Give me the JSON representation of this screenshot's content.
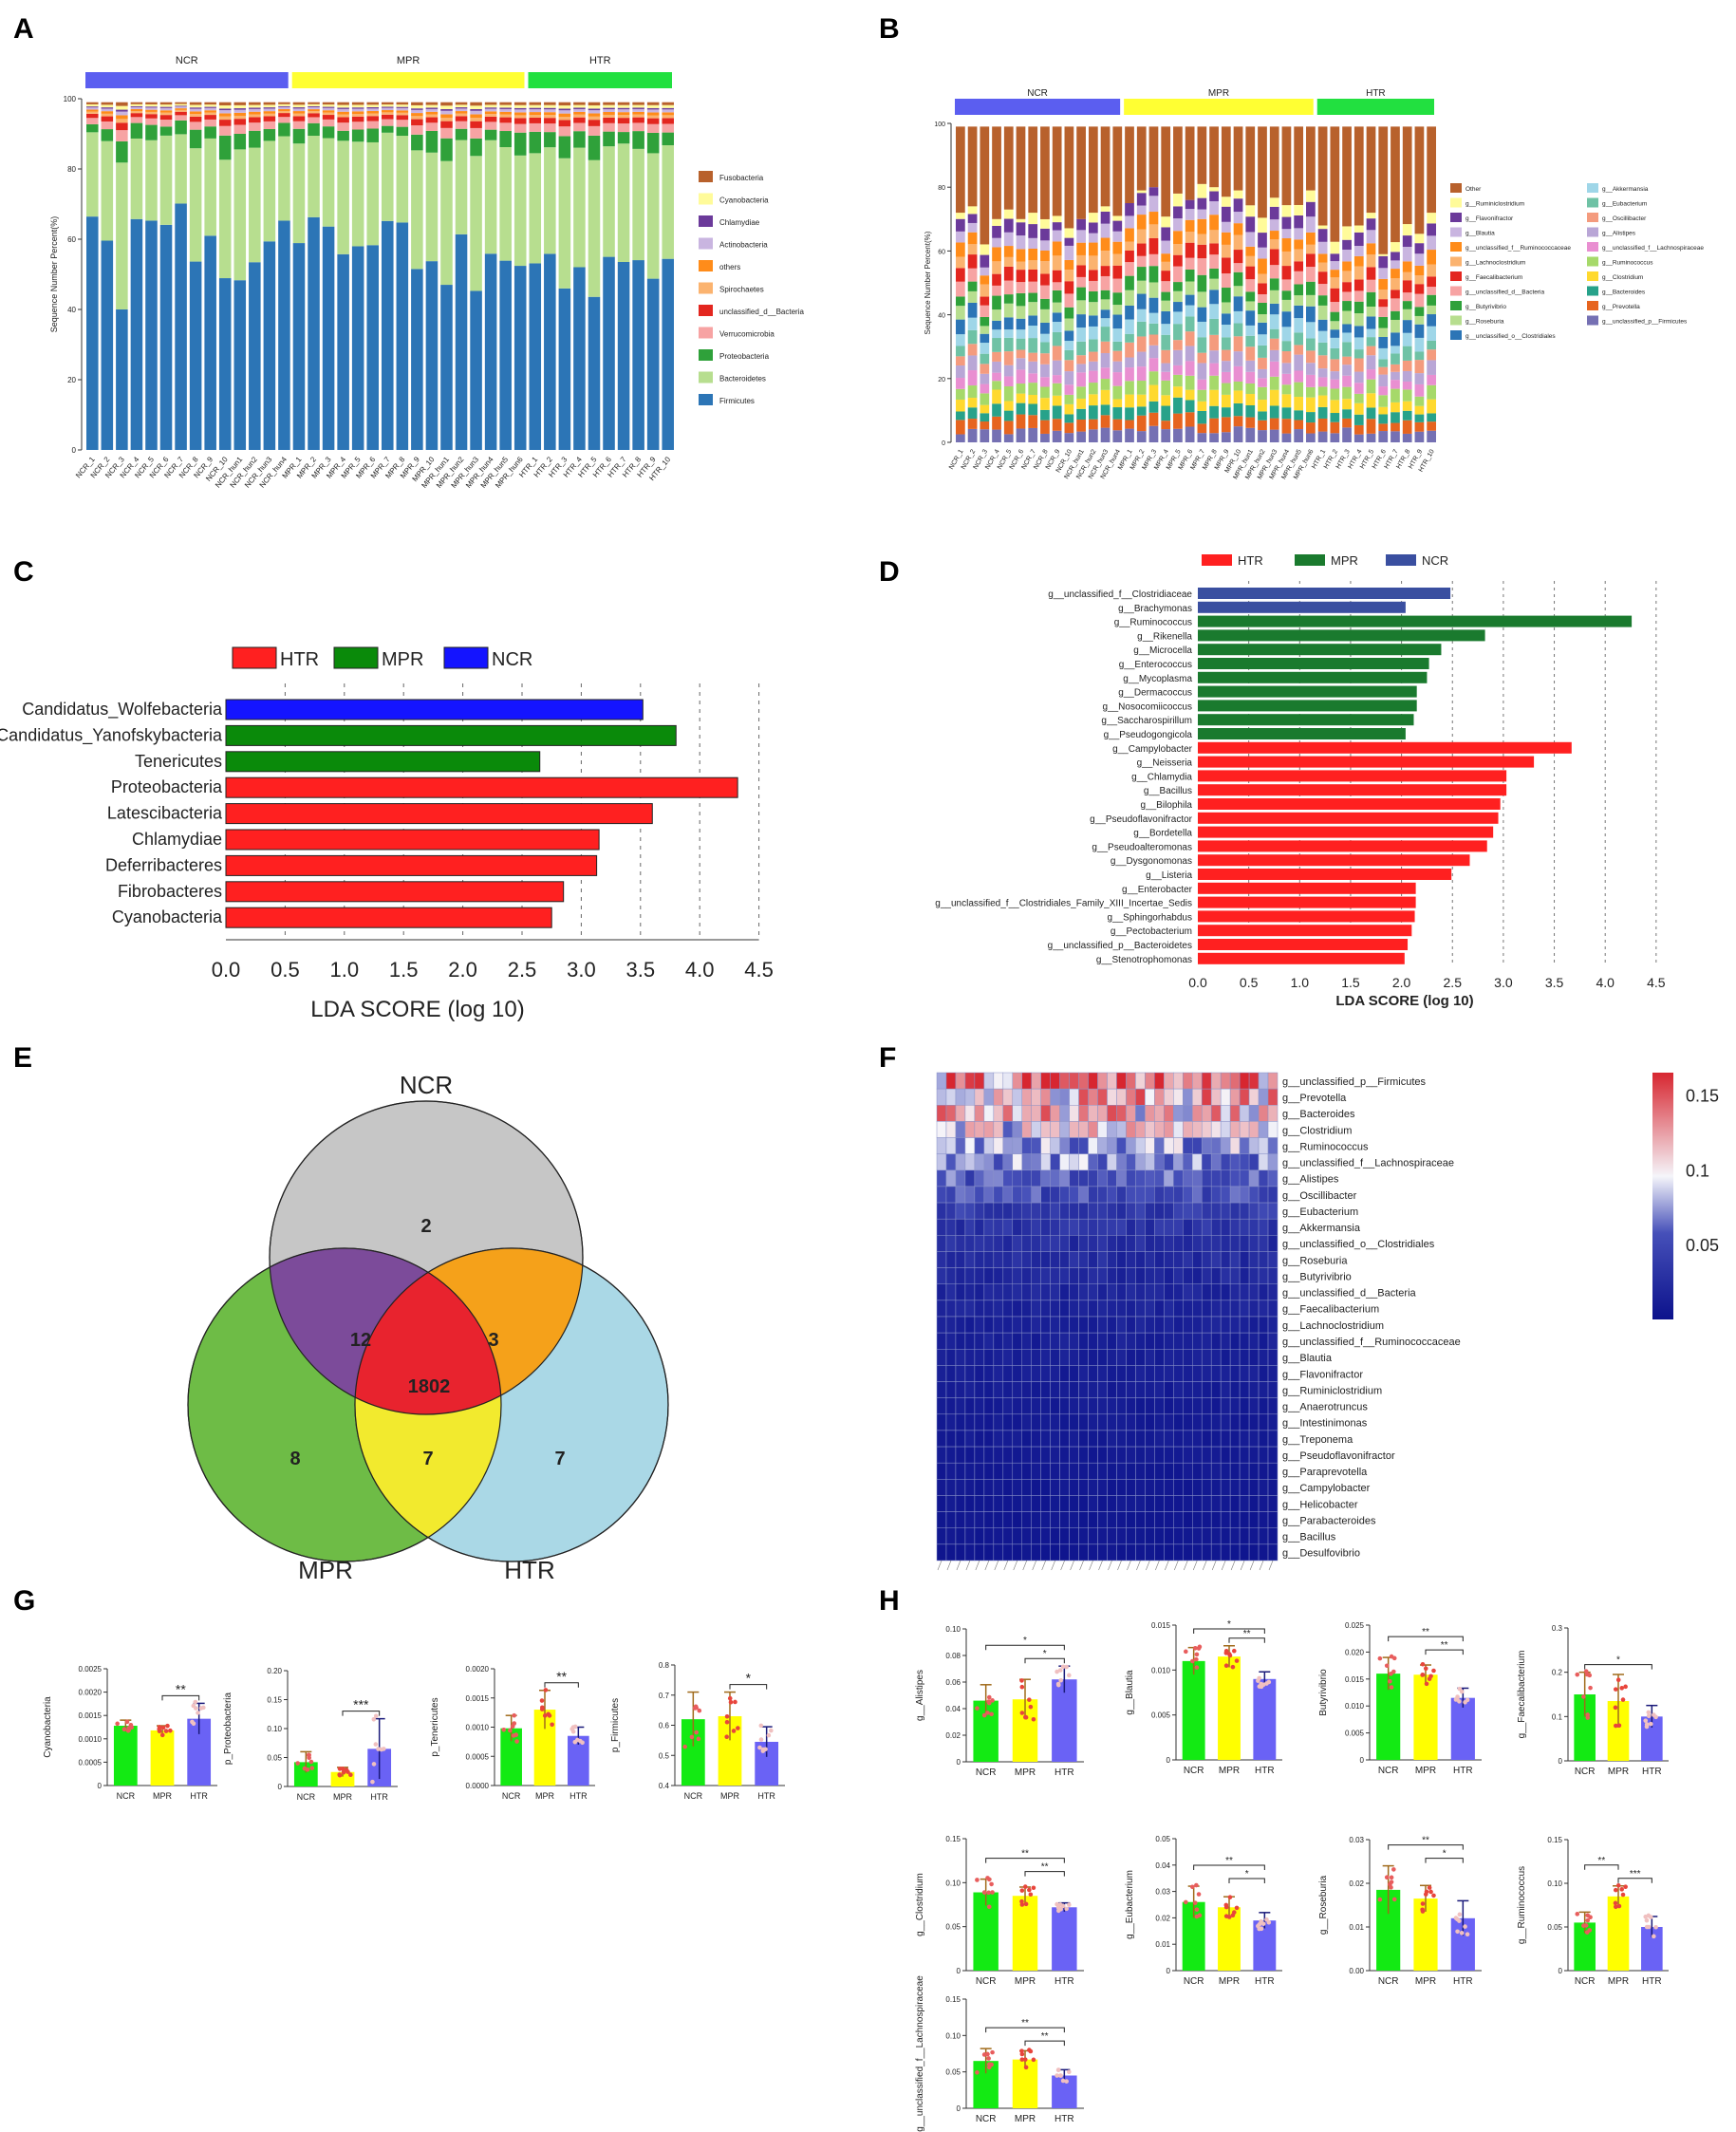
{
  "colors": {
    "NCR": "#5b5ef0",
    "MPR": "#ffff33",
    "HTR": "#22e040",
    "lefse_HTR": "#ff2020",
    "lefse_MPR": "#1a7a2e",
    "lefse_MPR_C": "#0a8a0a",
    "lefse_NCR_C": "#1414ff",
    "lefse_NCR_D": "#3a4fa0",
    "bar_green": "#13ea13",
    "bar_yellow": "#ffff00",
    "bar_blue": "#6a62f5",
    "venn_NCR": "#c6c6c6",
    "venn_MPR": "#6ebc46",
    "venn_HTR": "#aad8e6",
    "venn_NM": "#7c4b9a",
    "venn_NH": "#f5a11a",
    "venn_MH": "#f2ea2e",
    "venn_all": "#e8232e"
  },
  "chart_data": [
    {
      "panel": "A",
      "type": "bar",
      "stacked": true,
      "ylabel": "Sequence Number Percent(%)",
      "ylim": [
        0,
        100
      ],
      "yticks": [
        "0",
        "20",
        "40",
        "60",
        "80",
        "100"
      ],
      "groups": [
        {
          "name": "NCR",
          "count": 14
        },
        {
          "name": "MPR",
          "count": 16
        },
        {
          "name": "HTR",
          "count": 10
        }
      ],
      "categories": [
        "NCR_1",
        "NCR_2",
        "NCR_3",
        "NCR_4",
        "NCR_5",
        "NCR_6",
        "NCR_7",
        "NCR_8",
        "NCR_9",
        "NCR_10",
        "NCR_hun1",
        "NCR_hun2",
        "NCR_hun3",
        "NCR_hun4",
        "MPR_1",
        "MPR_2",
        "MPR_3",
        "MPR_4",
        "MPR_5",
        "MPR_6",
        "MPR_7",
        "MPR_8",
        "MPR_9",
        "MPR_10",
        "MPR_hun1",
        "MPR_hun2",
        "MPR_hun3",
        "MPR_hun4",
        "MPR_hun5",
        "MPR_hun6",
        "HTR_1",
        "HTR_2",
        "HTR_3",
        "HTR_4",
        "HTR_5",
        "HTR_6",
        "HTR_7",
        "HTR_8",
        "HTR_9",
        "HTR_10"
      ],
      "legend": [
        "Fusobacteria",
        "Cyanobacteria",
        "Chlamydiae",
        "Actinobacteria",
        "others",
        "Spirochaetes",
        "unclassified_d__Bacteria",
        "Verrucomicrobia",
        "Proteobacteria",
        "Bacteroidetes",
        "Firmicutes"
      ],
      "legend_colors": [
        "#b8612c",
        "#fffb9a",
        "#6b3a9a",
        "#c9b5e0",
        "#ff8c1a",
        "#fbb36f",
        "#e3261f",
        "#f7a3a3",
        "#2fa13a",
        "#b7de8f",
        "#2c75b6"
      ],
      "firmicutes": [
        69,
        62,
        43,
        70,
        68,
        66,
        74,
        59,
        65,
        52,
        53,
        58,
        62,
        70,
        62,
        70,
        66,
        59,
        61,
        62,
        67,
        66,
        54,
        58,
        49,
        63,
        48,
        60,
        58,
        56,
        57,
        58,
        50,
        57,
        49,
        58,
        57,
        58,
        54,
        57
      ]
    },
    {
      "panel": "B",
      "type": "bar",
      "stacked": true,
      "ylabel": "Sequence Number Percent(%)",
      "ylim": [
        0,
        100
      ],
      "yticks": [
        "0",
        "20",
        "40",
        "60",
        "80",
        "100"
      ],
      "groups": [
        {
          "name": "NCR",
          "count": 14
        },
        {
          "name": "MPR",
          "count": 16
        },
        {
          "name": "HTR",
          "count": 10
        }
      ],
      "categories": [
        "NCR_1",
        "NCR_2",
        "NCR_3",
        "NCR_4",
        "NCR_5",
        "NCR_6",
        "NCR_7",
        "NCR_8",
        "NCR_9",
        "NCR_10",
        "NCR_hun1",
        "NCR_hun2",
        "NCR_hun3",
        "NCR_hun4",
        "MPR_1",
        "MPR_2",
        "MPR_3",
        "MPR_4",
        "MPR_5",
        "MPR_6",
        "MPR_7",
        "MPR_8",
        "MPR_9",
        "MPR_10",
        "MPR_hun1",
        "MPR_hun2",
        "MPR_hun3",
        "MPR_hun4",
        "MPR_hun5",
        "MPR_hun6",
        "HTR_1",
        "HTR_2",
        "HTR_3",
        "HTR_4",
        "HTR_5",
        "HTR_6",
        "HTR_7",
        "HTR_8",
        "HTR_9",
        "HTR_10"
      ],
      "legend": [
        "Other",
        "g__Ruminiclostridium",
        "g__Flavonifractor",
        "g__Blautia",
        "g__unclassified_f__Ruminococcaceae",
        "g__Lachnoclostridium",
        "g__Faecalibacterium",
        "g__unclassified_d__Bacteria",
        "g__Butyrivibrio",
        "g__Roseburia",
        "g__unclassified_o__Clostridiales",
        "g__Akkermansia",
        "g__Eubacterium",
        "g__Oscillibacter",
        "g__Alistipes",
        "g__unclassified_f__Lachnospiraceae",
        "g__Ruminococcus",
        "g__Clostridium",
        "g__Bacteroides",
        "g__Prevotella",
        "g__unclassified_p__Firmicutes"
      ],
      "legend_colors": [
        "#b8612c",
        "#fffb9a",
        "#6b3a9a",
        "#c9b5e0",
        "#ff8c1a",
        "#fbb36f",
        "#e3261f",
        "#f7a3a3",
        "#2fa13a",
        "#b7de8f",
        "#2c75b6",
        "#9fd6e8",
        "#6fc2a5",
        "#f49b7e",
        "#b9a6d6",
        "#e98fd1",
        "#a6d96a",
        "#ffd92f",
        "#27a28a",
        "#e6641f",
        "#7570b3"
      ],
      "other_top": [
        72,
        74,
        69,
        70,
        73,
        70,
        72,
        70,
        71,
        69,
        70,
        72,
        74,
        71,
        75,
        79,
        80,
        74,
        78,
        76,
        81,
        80,
        77,
        79,
        75,
        74,
        78,
        76,
        81,
        79,
        68,
        66,
        72,
        68,
        72,
        59,
        67,
        71,
        68,
        72
      ]
    },
    {
      "panel": "C",
      "type": "bar",
      "orientation": "horizontal",
      "xlabel": "LDA SCORE (log 10)",
      "xlim": [
        0,
        4.5
      ],
      "xticks": [
        "0.0",
        "0.5",
        "1.0",
        "1.5",
        "2.0",
        "2.5",
        "3.0",
        "3.5",
        "4.0",
        "4.5"
      ],
      "legend": [
        "HTR",
        "MPR",
        "NCR"
      ],
      "categories": [
        "Candidatus_Wolfebacteria",
        "Candidatus_Yanofskybacteria",
        "Tenericutes",
        "Proteobacteria",
        "Latescibacteria",
        "Chlamydiae",
        "Deferribacteres",
        "Fibrobacteres",
        "Cyanobacteria"
      ],
      "values": [
        3.52,
        3.8,
        2.65,
        4.32,
        3.6,
        3.15,
        3.13,
        2.85,
        2.75
      ],
      "group": [
        "NCR",
        "MPR",
        "MPR",
        "HTR",
        "HTR",
        "HTR",
        "HTR",
        "HTR",
        "HTR"
      ]
    },
    {
      "panel": "D",
      "type": "bar",
      "orientation": "horizontal",
      "xlabel": "LDA SCORE (log 10)",
      "xlim": [
        0,
        4.5
      ],
      "xticks": [
        "0.0",
        "0.5",
        "1.0",
        "1.5",
        "2.0",
        "2.5",
        "3.0",
        "3.5",
        "4.0",
        "4.5"
      ],
      "legend": [
        "HTR",
        "MPR",
        "NCR"
      ],
      "categories": [
        "g__unclassified_f__Clostridiaceae",
        "g__Brachymonas",
        "g__Ruminococcus",
        "g__Rikenella",
        "g__Microcella",
        "g__Enterococcus",
        "g__Mycoplasma",
        "g__Dermacoccus",
        "g__Nosocomiicoccus",
        "g__Saccharospirillum",
        "g__Pseudogongicola",
        "g__Campylobacter",
        "g__Neisseria",
        "g__Chlamydia",
        "g__Bacillus",
        "g__Bilophila",
        "g__Pseudoflavonifractor",
        "g__Bordetella",
        "g__Pseudoalteromonas",
        "g__Dysgonomonas",
        "g__Listeria",
        "g__Enterobacter",
        "g__unclassified_f__Clostridiales_Family_XIII_Incertae_Sedis",
        "g__Sphingorhabdus",
        "g__Pectobacterium",
        "g__unclassified_p__Bacteroidetes",
        "g__Stenotrophomonas"
      ],
      "values": [
        2.48,
        2.04,
        4.26,
        2.82,
        2.39,
        2.27,
        2.25,
        2.15,
        2.15,
        2.12,
        2.04,
        3.67,
        3.3,
        3.03,
        3.03,
        2.97,
        2.95,
        2.9,
        2.84,
        2.67,
        2.49,
        2.14,
        2.14,
        2.13,
        2.1,
        2.06,
        2.03
      ],
      "group": [
        "NCR",
        "NCR",
        "MPR",
        "MPR",
        "MPR",
        "MPR",
        "MPR",
        "MPR",
        "MPR",
        "MPR",
        "MPR",
        "HTR",
        "HTR",
        "HTR",
        "HTR",
        "HTR",
        "HTR",
        "HTR",
        "HTR",
        "HTR",
        "HTR",
        "HTR",
        "HTR",
        "HTR",
        "HTR",
        "HTR",
        "HTR"
      ]
    },
    {
      "panel": "E",
      "type": "venn",
      "sets": [
        "NCR",
        "MPR",
        "HTR"
      ],
      "regions": {
        "NCR_only": "2",
        "MPR_only": "8",
        "HTR_only": "7",
        "NCR_MPR": "12",
        "NCR_HTR": "3",
        "MPR_HTR": "7",
        "all": "1802"
      }
    },
    {
      "panel": "F",
      "type": "heatmap",
      "rows": [
        "g__unclassified_p__Firmicutes",
        "g__Prevotella",
        "g__Bacteroides",
        "g__Clostridium",
        "g__Ruminococcus",
        "g__unclassified_f__Lachnospiraceae",
        "g__Alistipes",
        "g__Oscillibacter",
        "g__Eubacterium",
        "g__Akkermansia",
        "g__unclassified_o__Clostridiales",
        "g__Roseburia",
        "g__Butyrivibrio",
        "g__unclassified_d__Bacteria",
        "g__Faecalibacterium",
        "g__Lachnoclostridium",
        "g__unclassified_f__Ruminococcaceae",
        "g__Blautia",
        "g__Flavonifractor",
        "g__Ruminiclostridium",
        "g__Anaerotruncus",
        "g__Intestinimonas",
        "g__Treponema",
        "g__Pseudoflavonifractor",
        "g__Paraprevotella",
        "g__Campylobacter",
        "g__Helicobacter",
        "g__Parabacteroides",
        "g__Bacillus",
        "g__Desulfovibrio"
      ],
      "row_mean": [
        0.13,
        0.115,
        0.11,
        0.095,
        0.075,
        0.07,
        0.058,
        0.05,
        0.038,
        0.03,
        0.026,
        0.024,
        0.02,
        0.018,
        0.016,
        0.014,
        0.013,
        0.012,
        0.011,
        0.01,
        0.009,
        0.008,
        0.008,
        0.007,
        0.007,
        0.006,
        0.006,
        0.005,
        0.005,
        0.004
      ],
      "columns": 36,
      "scale": [
        "0.15",
        "0.1",
        "0.05"
      ],
      "scale_range": [
        0,
        0.165
      ]
    },
    {
      "panel": "G",
      "type": "bar",
      "subplots": [
        {
          "ylabel": "Cyanobacteria",
          "yticks": [
            "0",
            "0.0005",
            "0.0010",
            "0.0015",
            "0.0020",
            "0.0025"
          ],
          "ylim": [
            0,
            0.0025
          ],
          "values": [
            0.00128,
            0.00118,
            0.00143
          ],
          "err": [
            0.00012,
            0.0001,
            0.00033
          ],
          "sig": [
            {
              "from": 1,
              "to": 2,
              "label": "**"
            }
          ]
        },
        {
          "ylabel": "p_Proteobacteria",
          "yticks": [
            "0",
            "0.05",
            "0.10",
            "0.15",
            "0.20"
          ],
          "ylim": [
            0,
            0.2
          ],
          "values": [
            0.042,
            0.025,
            0.065
          ],
          "err": [
            0.018,
            0.008,
            0.052
          ],
          "sig": [
            {
              "from": 1,
              "to": 2,
              "label": "***"
            }
          ]
        },
        {
          "ylabel": "p_Tenericutes",
          "yticks": [
            "0.0000",
            "0.0005",
            "0.0010",
            "0.0015",
            "0.0020"
          ],
          "ylim": [
            0,
            0.002
          ],
          "values": [
            0.00098,
            0.0013,
            0.00085
          ],
          "err": [
            0.00022,
            0.00033,
            0.00015
          ],
          "sig": [
            {
              "from": 1,
              "to": 2,
              "label": "**"
            }
          ]
        },
        {
          "ylabel": "p_Firmicutes",
          "yticks": [
            "0.4",
            "0.5",
            "0.6",
            "0.7",
            "0.8"
          ],
          "ylim": [
            0.4,
            0.8
          ],
          "values": [
            0.62,
            0.63,
            0.545
          ],
          "err": [
            0.09,
            0.08,
            0.05
          ],
          "sig": [
            {
              "from": 1,
              "to": 2,
              "label": "*"
            }
          ]
        }
      ],
      "categories": [
        "NCR",
        "MPR",
        "HTR"
      ]
    },
    {
      "panel": "H",
      "type": "bar",
      "subplots": [
        {
          "ylabel": "g__Alistipes",
          "yticks": [
            "0",
            "0.02",
            "0.04",
            "0.06",
            "0.08",
            "0.10"
          ],
          "ylim": [
            0,
            0.1
          ],
          "values": [
            0.046,
            0.047,
            0.062
          ],
          "err": [
            0.012,
            0.015,
            0.01
          ],
          "sig": [
            {
              "from": 0,
              "to": 2,
              "label": "*"
            },
            {
              "from": 1,
              "to": 2,
              "label": "*"
            }
          ]
        },
        {
          "ylabel": "g__Blautia",
          "yticks": [
            "0",
            "0.005",
            "0.010",
            "0.015"
          ],
          "ylim": [
            0,
            0.015
          ],
          "values": [
            0.011,
            0.0115,
            0.009
          ],
          "err": [
            0.0015,
            0.0012,
            0.0008
          ],
          "sig": [
            {
              "from": 0,
              "to": 2,
              "label": "*"
            },
            {
              "from": 1,
              "to": 2,
              "label": "**"
            }
          ]
        },
        {
          "ylabel": "Butyrivibrio",
          "yticks": [
            "0",
            "0.005",
            "0.010",
            "0.015",
            "0.020",
            "0.025"
          ],
          "ylim": [
            0,
            0.025
          ],
          "values": [
            0.016,
            0.0158,
            0.0115
          ],
          "err": [
            0.003,
            0.0018,
            0.0018
          ],
          "sig": [
            {
              "from": 0,
              "to": 2,
              "label": "**"
            },
            {
              "from": 1,
              "to": 2,
              "label": "**"
            }
          ]
        },
        {
          "ylabel": "g__Faecalibacterium",
          "yticks": [
            "0",
            "0.1",
            "0.2",
            "0.3"
          ],
          "ylim": [
            0,
            0.3
          ],
          "values": [
            0.15,
            0.135,
            0.1
          ],
          "err": [
            0.05,
            0.06,
            0.025
          ],
          "sig": [
            {
              "from": 0,
              "to": 2,
              "label": "*"
            }
          ]
        },
        {
          "ylabel": "g__Clostridium",
          "yticks": [
            "0",
            "0.05",
            "0.10",
            "0.15"
          ],
          "ylim": [
            0,
            0.15
          ],
          "values": [
            0.089,
            0.085,
            0.072
          ],
          "err": [
            0.015,
            0.01,
            0.005
          ],
          "sig": [
            {
              "from": 0,
              "to": 2,
              "label": "**"
            },
            {
              "from": 1,
              "to": 2,
              "label": "**"
            }
          ]
        },
        {
          "ylabel": "g__Eubacterium",
          "yticks": [
            "0",
            "0.01",
            "0.02",
            "0.03",
            "0.04",
            "0.05"
          ],
          "ylim": [
            0,
            0.05
          ],
          "values": [
            0.026,
            0.024,
            0.019
          ],
          "err": [
            0.006,
            0.004,
            0.003
          ],
          "sig": [
            {
              "from": 0,
              "to": 2,
              "label": "**"
            },
            {
              "from": 1,
              "to": 2,
              "label": "*"
            }
          ]
        },
        {
          "ylabel": "g__Roseburia",
          "yticks": [
            "0.00",
            "0.01",
            "0.02",
            "0.03"
          ],
          "ylim": [
            0,
            0.03
          ],
          "values": [
            0.0185,
            0.0165,
            0.012
          ],
          "err": [
            0.0055,
            0.003,
            0.004
          ],
          "sig": [
            {
              "from": 0,
              "to": 2,
              "label": "**"
            },
            {
              "from": 1,
              "to": 2,
              "label": "*"
            }
          ]
        },
        {
          "ylabel": "g__Ruminococcus",
          "yticks": [
            "0",
            "0.05",
            "0.10",
            "0.15"
          ],
          "ylim": [
            0,
            0.15
          ],
          "values": [
            0.055,
            0.085,
            0.05
          ],
          "err": [
            0.012,
            0.012,
            0.012
          ],
          "sig": [
            {
              "from": 0,
              "to": 1,
              "label": "**"
            },
            {
              "from": 1,
              "to": 2,
              "label": "***"
            }
          ]
        },
        {
          "ylabel": "g__unclassified_f__Lachnospiraceae",
          "yticks": [
            "0",
            "0.05",
            "0.10",
            "0.15"
          ],
          "ylim": [
            0,
            0.15
          ],
          "values": [
            0.065,
            0.067,
            0.045
          ],
          "err": [
            0.017,
            0.012,
            0.008
          ],
          "sig": [
            {
              "from": 0,
              "to": 2,
              "label": "**"
            },
            {
              "from": 1,
              "to": 2,
              "label": "**"
            }
          ]
        }
      ],
      "categories": [
        "NCR",
        "MPR",
        "HTR"
      ]
    }
  ]
}
